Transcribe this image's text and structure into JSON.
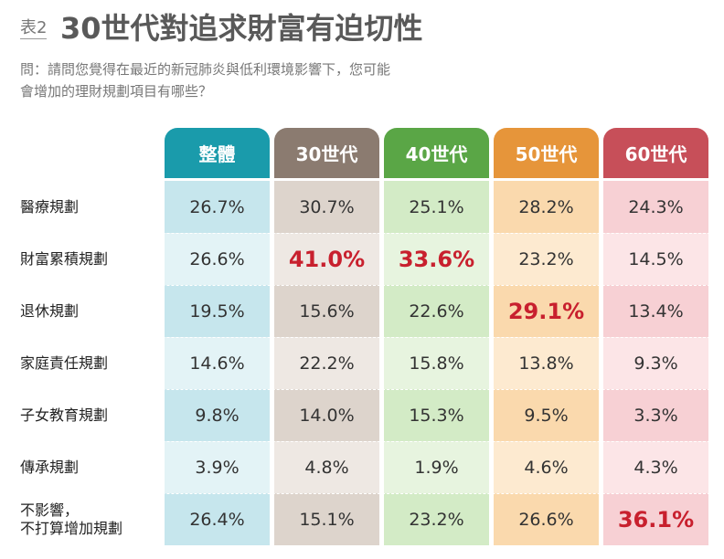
{
  "header": {
    "label": "表2",
    "title": "30世代對追求財富有迫切性",
    "question": "問：請問您覺得在最近的新冠肺炎與低利環境影響下，您可能\n會增加的理財規劃項目有哪些？"
  },
  "table": {
    "columns": [
      {
        "name": "整體",
        "color": "#1a9bab",
        "light": "#c6e6ed",
        "lighter": "#e3f3f6"
      },
      {
        "name": "30世代",
        "color": "#8b7b70",
        "light": "#ddd4cc",
        "lighter": "#eee8e3"
      },
      {
        "name": "40世代",
        "color": "#5aa646",
        "light": "#d3ebc6",
        "lighter": "#e7f4df"
      },
      {
        "name": "50世代",
        "color": "#e6953a",
        "light": "#fad9ad",
        "lighter": "#fdead0"
      },
      {
        "name": "60世代",
        "color": "#c74f59",
        "light": "#f7d0d4",
        "lighter": "#fce5e7"
      }
    ],
    "rows": [
      {
        "label": "醫療規劃",
        "cells": [
          "26.7%",
          "30.7%",
          "25.1%",
          "28.2%",
          "24.3%"
        ]
      },
      {
        "label": "財富累積規劃",
        "cells": [
          "26.6%",
          "41.0%",
          "33.6%",
          "23.2%",
          "14.5%"
        ]
      },
      {
        "label": "退休規劃",
        "cells": [
          "19.5%",
          "15.6%",
          "22.6%",
          "29.1%",
          "13.4%"
        ]
      },
      {
        "label": "家庭責任規劃",
        "cells": [
          "14.6%",
          "22.2%",
          "15.8%",
          "13.8%",
          "9.3%"
        ]
      },
      {
        "label": "子女教育規劃",
        "cells": [
          "9.8%",
          "14.0%",
          "15.3%",
          "9.5%",
          "3.3%"
        ]
      },
      {
        "label": "傳承規劃",
        "cells": [
          "3.9%",
          "4.8%",
          "1.9%",
          "4.6%",
          "4.3%"
        ]
      },
      {
        "label": "不影響，\n不打算增加規劃",
        "cells": [
          "26.4%",
          "15.1%",
          "23.2%",
          "26.6%",
          "36.1%"
        ]
      }
    ],
    "highlight": [
      [
        1,
        1
      ],
      [
        1,
        2
      ],
      [
        2,
        3
      ],
      [
        6,
        4
      ]
    ],
    "highlight_color": "#c8202e"
  }
}
